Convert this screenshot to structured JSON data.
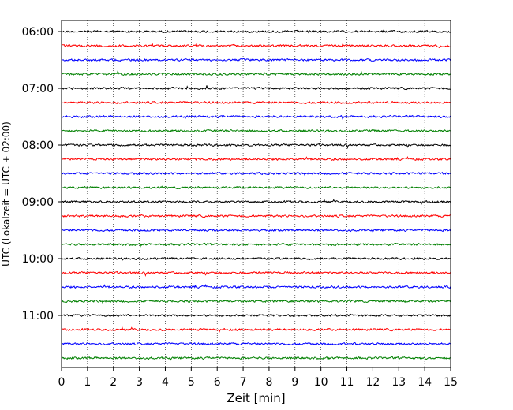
{
  "chart_data": {
    "type": "line",
    "title": "",
    "xlabel": "Zeit  [min]",
    "ylabel": "UTC (Lokalzeit = UTC + 02:00)",
    "xlim": [
      0,
      15
    ],
    "xticks": [
      0,
      1,
      2,
      3,
      4,
      5,
      6,
      7,
      8,
      9,
      10,
      11,
      12,
      13,
      14,
      15
    ],
    "ytick_labels": [
      "06:00",
      "07:00",
      "08:00",
      "09:00",
      "10:00",
      "11:00"
    ],
    "start_time": "06:00",
    "trace_interval_min": 15,
    "trace_count": 24,
    "trace_colors": [
      "#000000",
      "#ff0000",
      "#0000ff",
      "#008000"
    ],
    "grid": "vertical dotted at each minute",
    "legend": "none"
  }
}
